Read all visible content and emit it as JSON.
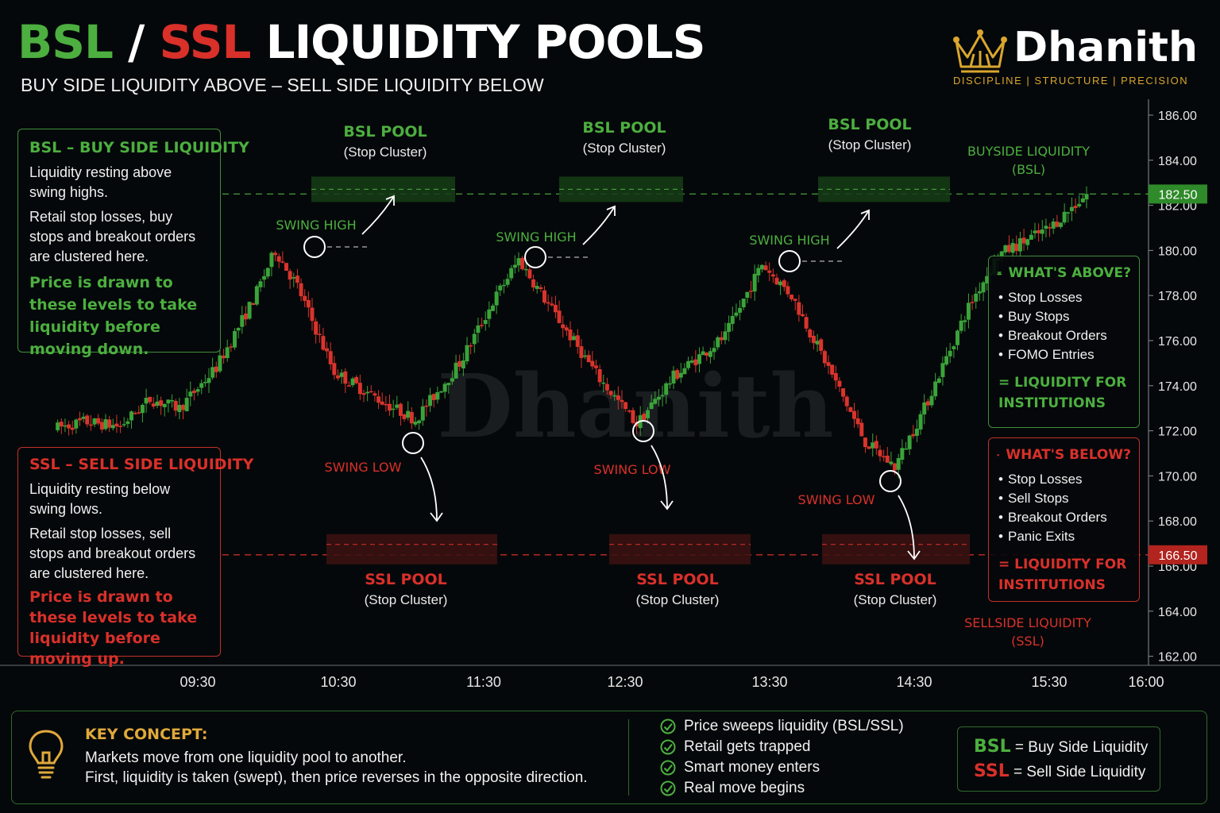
{
  "header": {
    "title_bsl": "BSL",
    "title_sep": " / ",
    "title_ssl": "SSL",
    "title_rest": " LIQUIDITY POOLS",
    "subtitle": "BUY SIDE LIQUIDITY ABOVE – SELL SIDE LIQUIDITY BELOW"
  },
  "brand": {
    "name": "Dhanith",
    "tagline": "DISCIPLINE  |  STRUCTURE  |  PRECISION",
    "watermark": "Dhanith",
    "icon": "crown-icon"
  },
  "colors": {
    "green": "#4caf3f",
    "red": "#d9302a",
    "gold": "#d9a62e",
    "background": "#05080a"
  },
  "bsl_box": {
    "heading": "BSL – BUY SIDE LIQUIDITY",
    "p1": "Liquidity resting above swing highs.",
    "p2": "Retail stop losses, buy stops and breakout orders are clustered here.",
    "emphasis": "Price is drawn to these levels to take liquidity before moving down."
  },
  "ssl_box": {
    "heading": "SSL – SELL SIDE LIQUIDITY",
    "p1": "Liquidity resting below swing lows.",
    "p2": "Retail stop losses, sell stops and breakout orders are clustered here.",
    "emphasis": "Price is drawn to these levels to take liquidity before moving up."
  },
  "above_box": {
    "heading": "WHAT'S ABOVE?",
    "icon": "people-icon",
    "items": [
      "Stop Losses",
      "Buy Stops",
      "Breakout Orders",
      "FOMO Entries"
    ],
    "conclusion": "= LIQUIDITY FOR INSTITUTIONS"
  },
  "below_box": {
    "heading": "WHAT'S BELOW?",
    "icon": "people-icon",
    "items": [
      "Stop Losses",
      "Sell Stops",
      "Breakout Orders",
      "Panic Exits"
    ],
    "conclusion": "= LIQUIDITY FOR INSTITUTIONS"
  },
  "chart_data": {
    "type": "candlestick",
    "y_ticks": [
      162,
      164,
      166,
      168,
      170,
      172,
      174,
      176,
      178,
      180,
      182,
      184,
      186
    ],
    "ylim": [
      160.5,
      187
    ],
    "x_ticks": [
      "09:30",
      "10:30",
      "11:30",
      "12:30",
      "13:30",
      "14:30",
      "15:30",
      "16:00"
    ],
    "bsl_level": 182.5,
    "ssl_level": 166.5,
    "bsl_price_label": "182.50",
    "ssl_price_label": "166.50",
    "bsl_line_label": [
      "BUYSIDE LIQUIDITY",
      "(BSL)"
    ],
    "ssl_line_label": [
      "SELLSIDE LIQUIDITY",
      "(SSL)"
    ],
    "pool_title_bsl": "BSL POOL",
    "pool_title_ssl": "SSL POOL",
    "pool_subtitle": "(Stop Cluster)",
    "swing_high_label": "SWING HIGH",
    "swing_low_label": "SWING LOW",
    "price_path": [
      {
        "t": 0,
        "p": 172.1
      },
      {
        "t": 4,
        "p": 172.4
      },
      {
        "t": 9,
        "p": 172.2
      },
      {
        "t": 13,
        "p": 173.4
      },
      {
        "t": 17,
        "p": 173.0
      },
      {
        "t": 22,
        "p": 174.8
      },
      {
        "t": 27,
        "p": 177.8
      },
      {
        "t": 30,
        "p": 180.0
      },
      {
        "t": 33,
        "p": 178.4
      },
      {
        "t": 38,
        "p": 174.6
      },
      {
        "t": 45,
        "p": 173.2
      },
      {
        "t": 49,
        "p": 172.5
      },
      {
        "t": 55,
        "p": 175.0
      },
      {
        "t": 60,
        "p": 178.0
      },
      {
        "t": 63,
        "p": 179.6
      },
      {
        "t": 67,
        "p": 177.6
      },
      {
        "t": 74,
        "p": 174.3
      },
      {
        "t": 79,
        "p": 172.3
      },
      {
        "t": 84,
        "p": 174.4
      },
      {
        "t": 91,
        "p": 176.2
      },
      {
        "t": 96,
        "p": 179.4
      },
      {
        "t": 100,
        "p": 178.0
      },
      {
        "t": 105,
        "p": 174.8
      },
      {
        "t": 110,
        "p": 171.5
      },
      {
        "t": 114,
        "p": 170.4
      },
      {
        "t": 118,
        "p": 173.0
      },
      {
        "t": 124,
        "p": 177.5
      },
      {
        "t": 128,
        "p": 179.8
      },
      {
        "t": 135,
        "p": 181.0
      },
      {
        "t": 140,
        "p": 182.5
      }
    ]
  },
  "bottom": {
    "key_title": "KEY CONCEPT:",
    "key_line1": "Markets move from one liquidity pool to another.",
    "key_line2": "First, liquidity is taken (swept), then price reverses in the opposite direction.",
    "checks": [
      "Price sweeps liquidity (BSL/SSL)",
      "Retail gets trapped",
      "Smart money enters",
      "Real move begins"
    ],
    "legend_bsl_abbr": "BSL",
    "legend_bsl_text": " = Buy Side Liquidity",
    "legend_ssl_abbr": "SSL",
    "legend_ssl_text": " = Sell Side Liquidity",
    "icon": "lightbulb-icon"
  }
}
